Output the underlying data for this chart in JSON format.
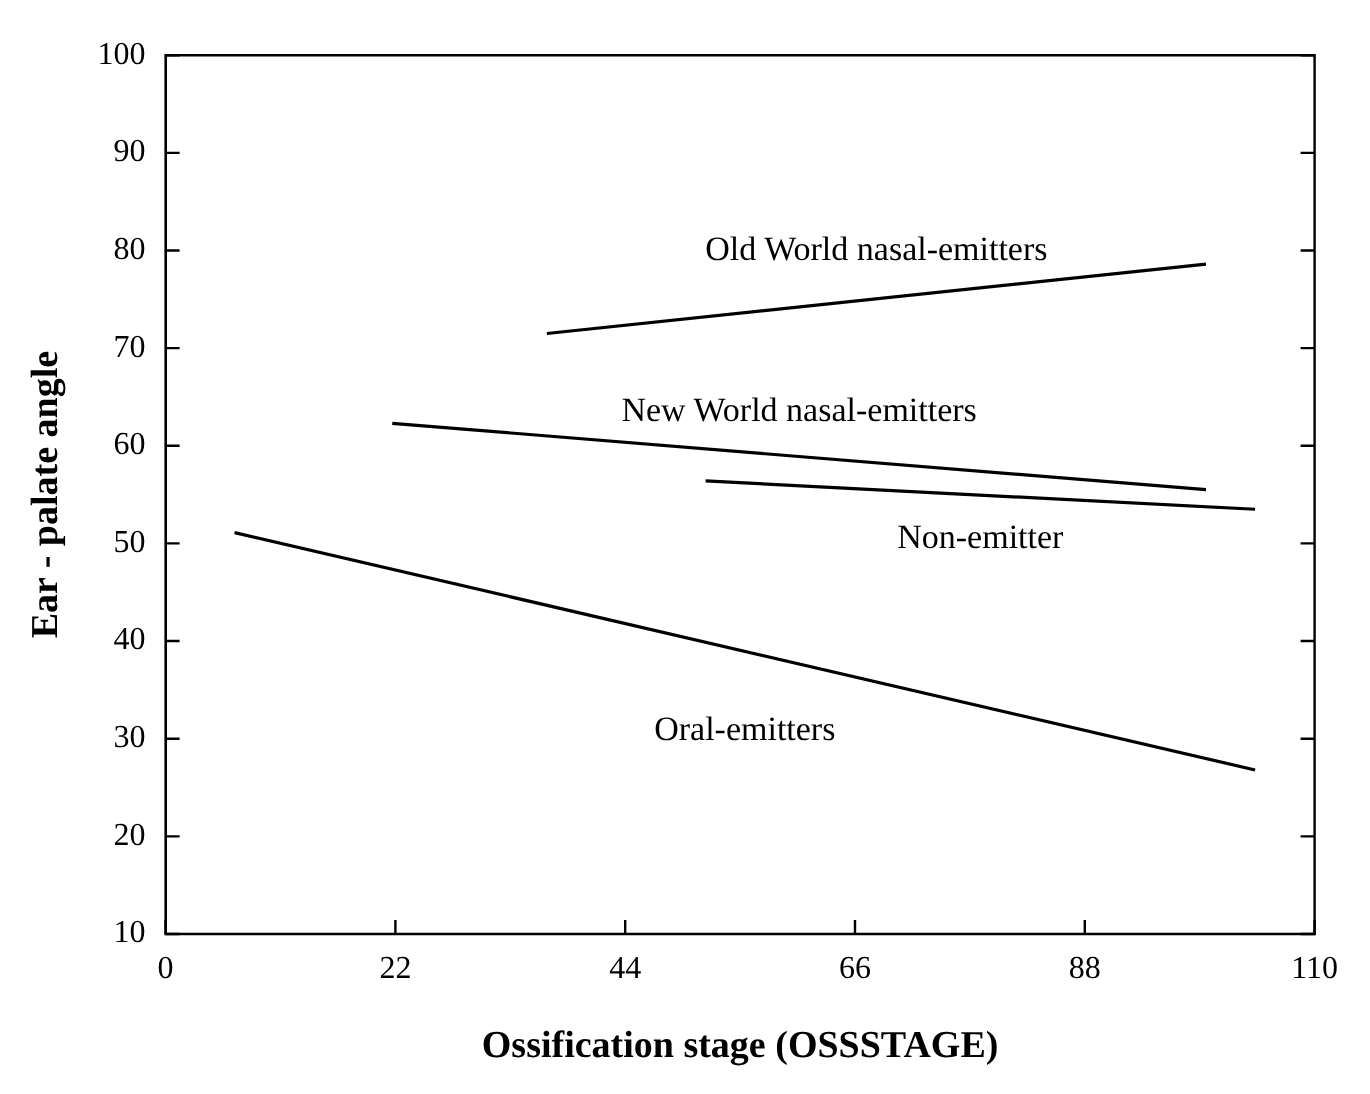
{
  "chart_data": {
    "type": "line",
    "xlabel": "Ossification stage (OSSSTAGE)",
    "ylabel": "Ear - palate angle",
    "series": [
      {
        "name": "Old World nasal-emitters",
        "color": "#000000",
        "x": [
          36.5,
          99.6
        ],
        "values": [
          71.5,
          78.6
        ]
      },
      {
        "name": "New World nasal-emitters",
        "color": "#000000",
        "x": [
          21.7,
          99.6
        ],
        "values": [
          62.3,
          55.5
        ]
      },
      {
        "name": "Non-emitter",
        "color": "#000000",
        "x": [
          51.7,
          104.3
        ],
        "values": [
          56.4,
          53.5
        ]
      },
      {
        "name": "Oral-emitters",
        "color": "#000000",
        "x": [
          6.6,
          104.3
        ],
        "values": [
          51.1,
          26.8
        ]
      }
    ],
    "xlim": [
      0,
      110
    ],
    "xticks": [
      0,
      22,
      44,
      66,
      88,
      110
    ],
    "ylim": [
      10,
      100
    ],
    "yticks": [
      10,
      20,
      30,
      40,
      50,
      60,
      70,
      80,
      90,
      100
    ],
    "grid": false,
    "legend": false,
    "marker": "none",
    "line_style": "solid"
  }
}
